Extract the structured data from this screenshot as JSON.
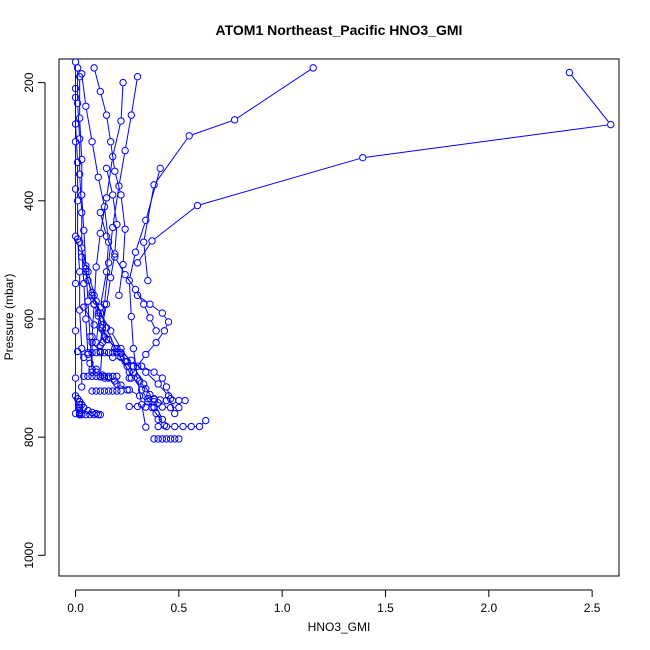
{
  "chart_data": {
    "type": "line",
    "title": "ATOM1 Northeast_Pacific HNO3_GMI",
    "xlabel": "HNO3_GMI",
    "ylabel": "Pressure (mbar)",
    "xlim": [
      -0.08,
      2.63
    ],
    "ylim": [
      1035,
      160
    ],
    "y_reversed": true,
    "x_ticks": [
      {
        "value": 0.0,
        "label": "0.0"
      },
      {
        "value": 0.5,
        "label": "0.5"
      },
      {
        "value": 1.0,
        "label": "1.0"
      },
      {
        "value": 1.5,
        "label": "1.5"
      },
      {
        "value": 2.0,
        "label": "2.0"
      },
      {
        "value": 2.5,
        "label": "2.5"
      }
    ],
    "y_ticks": [
      {
        "value": 200,
        "label": "200"
      },
      {
        "value": 400,
        "label": "400"
      },
      {
        "value": 600,
        "label": "600"
      },
      {
        "value": 800,
        "label": "800"
      },
      {
        "value": 1000,
        "label": "1000"
      }
    ],
    "series_color": "#0000ff",
    "marker": "open-circle",
    "grid": false,
    "series": [
      {
        "x": [
          1.15,
          0.77,
          0.55,
          0.38,
          0.33,
          0.35
        ],
        "y": [
          175,
          263,
          290,
          373,
          470,
          535
        ]
      },
      {
        "x": [
          2.39,
          2.59,
          1.39,
          0.59,
          0.37,
          0.3
        ],
        "y": [
          183,
          271,
          327,
          408,
          468,
          505
        ]
      },
      {
        "x": [
          0.41,
          0.34,
          0.29,
          0.26,
          0.27,
          0.28,
          0.3,
          0.32,
          0.34
        ],
        "y": [
          345,
          433,
          487,
          535,
          596,
          650,
          700,
          745,
          783
        ]
      },
      {
        "x": [
          0.3,
          0.27,
          0.24,
          0.21,
          0.18,
          0.16,
          0.14,
          0.13,
          0.12
        ],
        "y": [
          190,
          255,
          315,
          375,
          445,
          505,
          575,
          640,
          698
        ]
      },
      {
        "x": [
          0.23,
          0.22,
          0.18,
          0.15,
          0.12,
          0.1,
          0.09,
          0.08,
          0.08
        ],
        "y": [
          200,
          265,
          325,
          395,
          455,
          512,
          575,
          630,
          685
        ]
      },
      {
        "x": [
          0.09,
          0.12,
          0.15,
          0.17,
          0.19,
          0.22,
          0.24,
          0.23,
          0.21
        ],
        "y": [
          175,
          215,
          255,
          300,
          350,
          390,
          448,
          508,
          560
        ]
      },
      {
        "x": [
          0.03,
          0.05,
          0.08,
          0.11,
          0.14,
          0.16,
          0.15,
          0.12,
          0.1
        ],
        "y": [
          185,
          240,
          300,
          360,
          410,
          470,
          520,
          580,
          640
        ]
      },
      {
        "x": [
          0.02,
          0.02,
          0.03,
          0.03,
          0.04,
          0.05,
          0.06,
          0.07,
          0.08
        ],
        "y": [
          190,
          260,
          330,
          390,
          450,
          510,
          570,
          630,
          690
        ]
      },
      {
        "x": [
          0.01,
          0.01,
          0.02,
          0.02,
          0.03,
          0.03,
          0.04,
          0.05,
          0.06
        ],
        "y": [
          175,
          235,
          295,
          355,
          420,
          480,
          540,
          600,
          660
        ]
      },
      {
        "x": [
          0.0,
          0.0,
          0.01,
          0.01,
          0.01,
          0.02,
          0.02,
          0.03,
          0.03
        ],
        "y": [
          210,
          270,
          335,
          400,
          465,
          520,
          585,
          650,
          715
        ]
      },
      {
        "x": [
          0.05,
          0.08,
          0.12,
          0.17,
          0.22,
          0.28,
          0.33,
          0.38,
          0.42
        ],
        "y": [
          520,
          560,
          590,
          620,
          650,
          680,
          710,
          740,
          770
        ]
      },
      {
        "x": [
          0.02,
          0.06,
          0.1,
          0.15,
          0.2,
          0.26,
          0.32,
          0.37,
          0.43
        ],
        "y": [
          470,
          520,
          570,
          615,
          655,
          690,
          720,
          750,
          780
        ]
      },
      {
        "x": [
          0.04,
          0.09,
          0.14,
          0.2,
          0.27,
          0.34,
          0.4,
          0.45,
          0.48
        ],
        "y": [
          580,
          610,
          630,
          650,
          670,
          690,
          710,
          730,
          760
        ]
      },
      {
        "x": [
          0.08,
          0.12,
          0.18,
          0.25,
          0.32,
          0.38,
          0.42,
          0.44,
          0.46
        ],
        "y": [
          640,
          655,
          665,
          672,
          680,
          690,
          700,
          715,
          735
        ]
      },
      {
        "x": [
          0.3,
          0.36,
          0.42,
          0.45,
          0.43,
          0.39,
          0.34,
          0.3,
          0.26
        ],
        "y": [
          560,
          575,
          590,
          605,
          620,
          640,
          660,
          680,
          700
        ]
      },
      {
        "x": [
          0.1,
          0.14,
          0.2,
          0.26,
          0.31,
          0.35,
          0.38,
          0.39,
          0.4
        ],
        "y": [
          690,
          700,
          710,
          720,
          730,
          740,
          750,
          760,
          770
        ]
      },
      {
        "x": [
          0.01,
          0.04,
          0.07,
          0.1,
          0.13,
          0.16,
          0.19,
          0.22,
          0.25
        ],
        "y": [
          655,
          665,
          675,
          685,
          695,
          700,
          705,
          712,
          720
        ]
      },
      {
        "x": [
          0.0,
          0.01,
          0.02,
          0.03,
          0.04,
          0.06,
          0.08,
          0.1,
          0.12
        ],
        "y": [
          730,
          735,
          740,
          745,
          750,
          755,
          758,
          760,
          762
        ]
      },
      {
        "x": [
          0.35,
          0.38,
          0.41,
          0.44,
          0.47,
          0.5,
          0.53
        ],
        "y": [
          735,
          736,
          737,
          738,
          738,
          738,
          738
        ]
      },
      {
        "x": [
          0.26,
          0.3,
          0.34,
          0.38,
          0.42,
          0.46,
          0.5
        ],
        "y": [
          748,
          748,
          749,
          749,
          749,
          750,
          750
        ]
      },
      {
        "x": [
          0.4,
          0.44,
          0.48,
          0.52,
          0.56,
          0.6,
          0.63
        ],
        "y": [
          782,
          782,
          782,
          782,
          782,
          782,
          772
        ]
      },
      {
        "x": [
          0.38,
          0.4,
          0.42,
          0.44,
          0.46,
          0.48,
          0.5
        ],
        "y": [
          803,
          803,
          803,
          803,
          803,
          803,
          803
        ]
      },
      {
        "x": [
          0.04,
          0.06,
          0.08,
          0.1,
          0.12,
          0.14,
          0.16,
          0.18,
          0.2
        ],
        "y": [
          697,
          697,
          697,
          697,
          697,
          697,
          697,
          697,
          697
        ]
      },
      {
        "x": [
          0.08,
          0.1,
          0.12,
          0.14,
          0.16,
          0.18,
          0.2,
          0.22
        ],
        "y": [
          722,
          722,
          722,
          722,
          722,
          722,
          722,
          722
        ]
      },
      {
        "x": [
          0.06,
          0.08,
          0.1,
          0.12,
          0.14,
          0.16,
          0.18,
          0.2,
          0.22
        ],
        "y": [
          657,
          657,
          657,
          657,
          657,
          657,
          657,
          657,
          657
        ]
      },
      {
        "x": [
          0.22,
          0.24,
          0.28,
          0.31,
          0.34,
          0.36,
          0.38,
          0.4
        ],
        "y": [
          658,
          672,
          690,
          705,
          718,
          728,
          735,
          742
        ]
      },
      {
        "x": [
          0.03,
          0.05,
          0.06,
          0.08,
          0.09,
          0.11,
          0.13,
          0.15
        ],
        "y": [
          495,
          515,
          535,
          555,
          575,
          595,
          615,
          635
        ]
      },
      {
        "x": [
          0.15,
          0.18,
          0.2,
          0.19,
          0.17,
          0.15,
          0.13,
          0.12
        ],
        "y": [
          345,
          390,
          440,
          490,
          530,
          575,
          610,
          645
        ]
      },
      {
        "x": [
          0.12,
          0.15,
          0.19,
          0.24,
          0.29,
          0.33,
          0.36,
          0.39
        ],
        "y": [
          420,
          460,
          495,
          525,
          550,
          575,
          598,
          620
        ]
      },
      {
        "x": [
          0.09,
          0.11,
          0.13,
          0.16,
          0.19,
          0.22,
          0.25,
          0.27
        ],
        "y": [
          560,
          590,
          615,
          635,
          650,
          665,
          680,
          700
        ]
      },
      {
        "x": [
          0.0,
          0.0,
          0.0,
          0.0,
          0.0,
          0.0,
          0.0,
          0.0,
          0.0
        ],
        "y": [
          165,
          225,
          300,
          380,
          460,
          540,
          620,
          700,
          760
        ]
      },
      {
        "x": [
          0.02,
          0.02,
          0.02,
          0.02,
          0.02,
          0.02,
          0.02,
          0.02
        ],
        "y": [
          740,
          745,
          750,
          755,
          758,
          760,
          762,
          762
        ]
      },
      {
        "x": [
          0.03,
          0.05,
          0.07,
          0.09,
          0.11
        ],
        "y": [
          762,
          762,
          762,
          762,
          762
        ]
      }
    ]
  }
}
